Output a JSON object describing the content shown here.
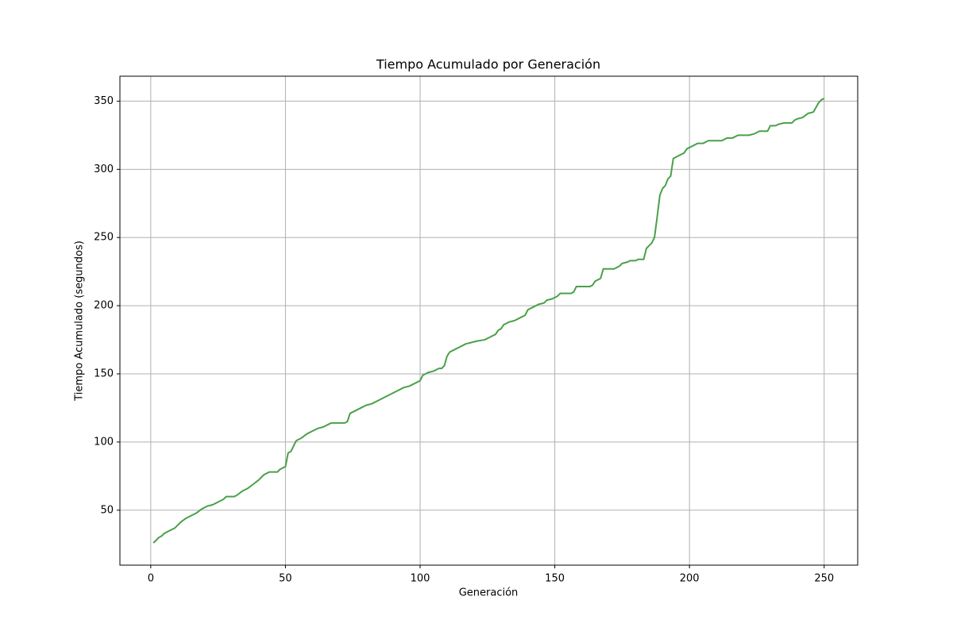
{
  "chart_data": {
    "type": "line",
    "title": "Tiempo Acumulado por Generación",
    "x_label": "Generación",
    "y_label": "Tiempo Acumulado (segundos)",
    "color": "#4aa04a",
    "x": [
      1,
      2,
      3,
      4,
      5,
      7,
      9,
      11,
      13,
      15,
      17,
      19,
      21,
      23,
      25,
      27,
      28,
      31,
      32,
      34,
      36,
      38,
      40,
      42,
      44,
      47,
      48,
      50,
      51,
      52,
      54,
      56,
      58,
      60,
      62,
      64,
      66,
      67,
      72,
      73,
      74,
      78,
      80,
      82,
      90,
      94,
      96,
      100,
      101,
      103,
      105,
      107,
      108,
      109,
      110,
      111,
      113,
      115,
      117,
      119,
      121,
      124,
      126,
      128,
      129,
      130,
      131,
      133,
      135,
      137,
      139,
      140,
      142,
      144,
      146,
      147,
      149,
      151,
      152,
      156,
      157,
      158,
      163,
      164,
      165,
      167,
      168,
      172,
      174,
      175,
      177,
      178,
      180,
      181,
      183,
      184,
      186,
      187,
      188,
      189,
      190,
      191,
      192,
      193,
      194,
      196,
      198,
      199,
      201,
      203,
      205,
      207,
      212,
      213,
      214,
      216,
      218,
      222,
      224,
      226,
      229,
      230,
      232,
      233,
      235,
      238,
      239,
      240,
      242,
      244,
      246,
      248,
      249,
      250
    ],
    "values": [
      26,
      28,
      30,
      31,
      33,
      35,
      37,
      41,
      44,
      46,
      48,
      51,
      53,
      54,
      56,
      58,
      60,
      60,
      61,
      64,
      66,
      69,
      72,
      76,
      78,
      78,
      80,
      82,
      92,
      93,
      101,
      103,
      106,
      108,
      110,
      111,
      113,
      114,
      114,
      115,
      121,
      125,
      127,
      128,
      136,
      140,
      141,
      145,
      149,
      151,
      152,
      154,
      154,
      156,
      163,
      166,
      168,
      170,
      172,
      173,
      174,
      175,
      177,
      179,
      182,
      183,
      186,
      188,
      189,
      191,
      193,
      197,
      199,
      201,
      202,
      204,
      205,
      207,
      209,
      209,
      210,
      214,
      214,
      215,
      218,
      220,
      227,
      227,
      229,
      231,
      232,
      233,
      233,
      234,
      234,
      242,
      246,
      250,
      265,
      281,
      286,
      288,
      293,
      295,
      308,
      310,
      312,
      315,
      317,
      319,
      319,
      321,
      321,
      322,
      323,
      323,
      325,
      325,
      326,
      328,
      328,
      332,
      332,
      333,
      334,
      334,
      336,
      337,
      338,
      341,
      342,
      349,
      351,
      352
    ],
    "xlim": [
      -11.45,
      262.45
    ],
    "ylim": [
      9.7,
      368.3
    ],
    "xticks": [
      0,
      50,
      100,
      150,
      200,
      250
    ],
    "yticks": [
      50,
      100,
      150,
      200,
      250,
      300,
      350
    ],
    "grid": true
  }
}
